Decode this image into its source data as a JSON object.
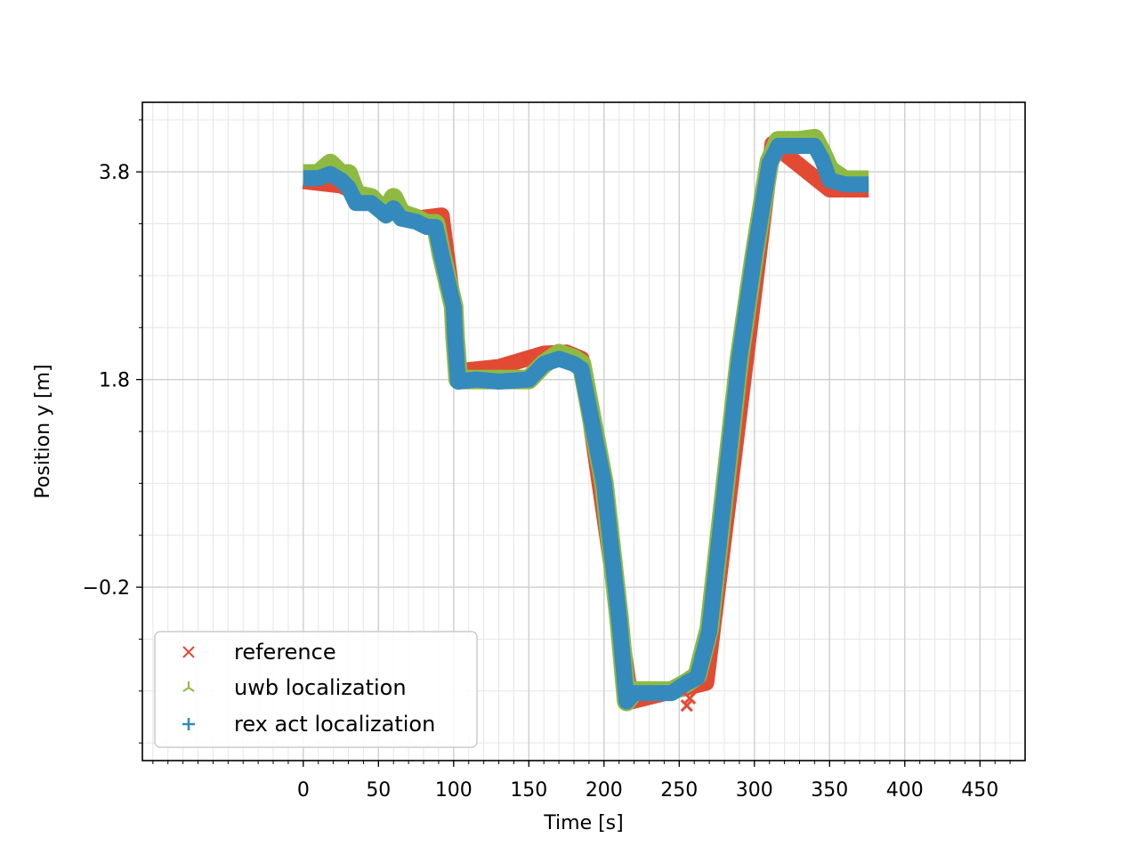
{
  "chart_data": {
    "type": "scatter",
    "title": "",
    "xlabel": "Time [s]",
    "ylabel": "Position y [m]",
    "xlim": [
      -107,
      480
    ],
    "ylim": [
      -1.87,
      4.47
    ],
    "xticks": [
      0,
      50,
      100,
      150,
      200,
      250,
      300,
      350,
      400,
      450
    ],
    "xtick_labels": [
      "0",
      "50",
      "100",
      "150",
      "200",
      "250",
      "300",
      "350",
      "400",
      "450"
    ],
    "yticks": [
      3.8,
      1.8,
      -0.2
    ],
    "ytick_labels": [
      "3.8",
      "1.8",
      "−0.2"
    ],
    "grid": true,
    "legend_position": "lower-left",
    "series": [
      {
        "name": "reference",
        "marker": "x",
        "color": "#e24a33",
        "x": [
          0,
          25,
          50,
          75,
          92,
          101,
          103,
          130,
          160,
          175,
          185,
          218,
          268,
          312,
          350,
          376
        ],
        "y": [
          3.71,
          3.67,
          3.5,
          3.35,
          3.38,
          2.38,
          1.88,
          1.92,
          2.05,
          2.06,
          2.0,
          -1.3,
          -1.12,
          4.07,
          3.63,
          3.63
        ]
      },
      {
        "name": "uwb localization",
        "marker": "tri_down",
        "color": "#8eba42",
        "x": [
          0,
          10,
          18,
          25,
          30,
          35,
          45,
          55,
          60,
          65,
          75,
          82,
          88,
          92,
          100,
          101,
          103,
          115,
          130,
          150,
          160,
          170,
          180,
          185,
          200,
          210,
          215,
          220,
          230,
          245,
          255,
          262,
          270,
          290,
          300,
          310,
          316,
          330,
          340,
          345,
          350,
          360,
          376
        ],
        "y": [
          3.78,
          3.78,
          3.88,
          3.78,
          3.78,
          3.58,
          3.55,
          3.4,
          3.55,
          3.4,
          3.35,
          3.3,
          3.3,
          3.0,
          2.5,
          2.2,
          1.8,
          1.8,
          1.8,
          1.8,
          1.95,
          2.05,
          2.0,
          1.95,
          0.8,
          -0.5,
          -1.3,
          -1.2,
          -1.2,
          -1.2,
          -1.12,
          -1.05,
          -0.6,
          2.0,
          3.0,
          3.9,
          4.1,
          4.1,
          4.12,
          3.98,
          3.82,
          3.72,
          3.72
        ]
      },
      {
        "name": "rex act localization",
        "marker": "plus",
        "color": "#348abd",
        "x": [
          0,
          10,
          18,
          25,
          30,
          35,
          45,
          55,
          60,
          65,
          75,
          82,
          88,
          92,
          100,
          101,
          103,
          115,
          130,
          150,
          160,
          170,
          180,
          185,
          200,
          210,
          215,
          220,
          230,
          245,
          255,
          262,
          270,
          290,
          300,
          310,
          316,
          330,
          340,
          345,
          350,
          360,
          376
        ],
        "y": [
          3.74,
          3.74,
          3.78,
          3.72,
          3.65,
          3.5,
          3.5,
          3.38,
          3.45,
          3.35,
          3.32,
          3.27,
          3.27,
          3.0,
          2.5,
          2.2,
          1.78,
          1.8,
          1.78,
          1.8,
          1.95,
          2.0,
          1.95,
          1.9,
          0.8,
          -0.5,
          -1.3,
          -1.22,
          -1.22,
          -1.22,
          -1.12,
          -1.07,
          -0.62,
          2.0,
          3.0,
          3.88,
          4.05,
          4.05,
          4.05,
          3.92,
          3.72,
          3.68,
          3.68
        ]
      }
    ],
    "annotations": [
      {
        "series": "reference",
        "marker": "x",
        "x": 255,
        "y": -1.34
      },
      {
        "series": "reference",
        "marker": "x",
        "x": 257,
        "y": -1.27
      }
    ]
  }
}
